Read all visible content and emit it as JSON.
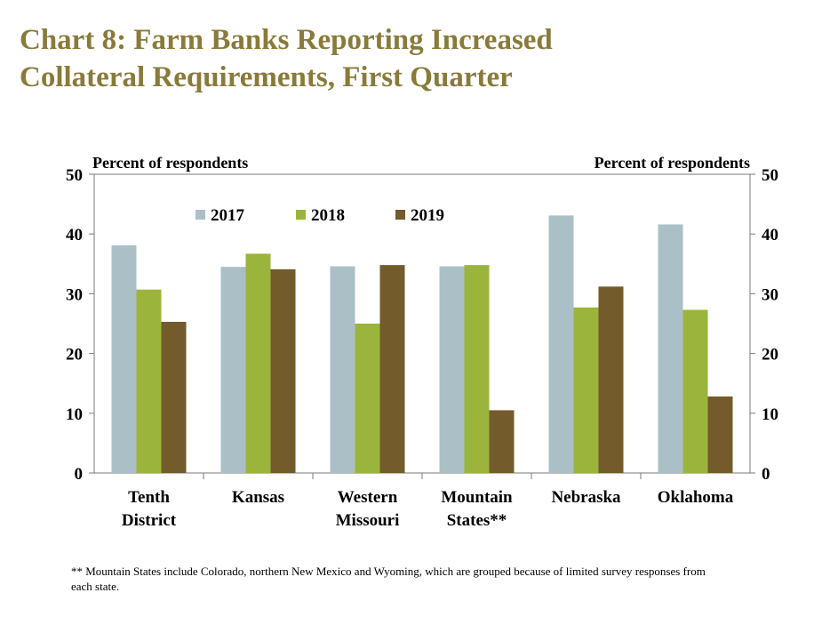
{
  "title": {
    "line1": "Chart 8: Farm Banks Reporting Increased",
    "line2": "Collateral Requirements, First Quarter"
  },
  "footnote": "** Mountain States include Colorado, northern New Mexico and Wyoming, which are grouped because of limited survey responses from each state.",
  "colors": {
    "2017": "#abc0c6",
    "2018": "#9bb43b",
    "2019": "#735b2b",
    "title": "#8a7a3a"
  },
  "chart_data": {
    "type": "bar",
    "left_axis_label": "Percent of respondents",
    "right_axis_label": "Percent of respondents",
    "ylim": [
      0,
      50
    ],
    "yticks": [
      0,
      10,
      20,
      30,
      40,
      50
    ],
    "grid": false,
    "legend_position": "top-center",
    "categories": [
      [
        "Tenth",
        "District"
      ],
      [
        "Kansas"
      ],
      [
        "Western",
        "Missouri"
      ],
      [
        "Mountain",
        "States**"
      ],
      [
        "Nebraska"
      ],
      [
        "Oklahoma"
      ]
    ],
    "series": [
      {
        "name": "2017",
        "values": [
          38.1,
          34.5,
          34.6,
          34.6,
          43.1,
          41.6
        ]
      },
      {
        "name": "2018",
        "values": [
          30.7,
          36.7,
          25.0,
          34.8,
          27.7,
          27.3
        ]
      },
      {
        "name": "2019",
        "values": [
          25.3,
          34.1,
          34.8,
          10.5,
          31.2,
          12.8
        ]
      }
    ]
  }
}
